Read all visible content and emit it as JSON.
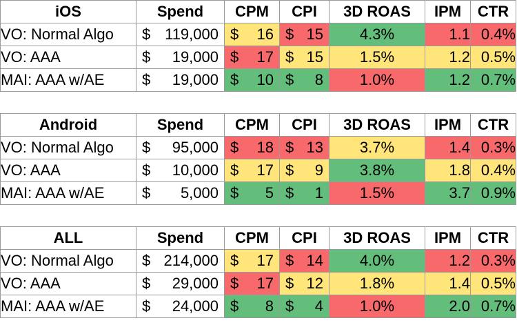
{
  "colors": {
    "green": "#63be7b",
    "yellow": "#ffe57a",
    "red": "#f8696b",
    "border": "#9a9a9a"
  },
  "tables": [
    {
      "header": [
        "iOS",
        "Spend",
        "CPM",
        "CPI",
        "3D ROAS",
        "IPM",
        "CTR"
      ],
      "rows": [
        {
          "label": "VO: Normal Algo",
          "spend": "119,000",
          "cpm": "16",
          "cpi": "15",
          "roas": "4.3%",
          "ipm": "1.1",
          "ctr": "0.4%",
          "colors": {
            "cpm": "yellow",
            "cpi": "red",
            "roas": "green",
            "ipm": "red",
            "ctr": "red"
          }
        },
        {
          "label": "VO: AAA",
          "spend": "19,000",
          "cpm": "17",
          "cpi": "15",
          "roas": "1.5%",
          "ipm": "1.2",
          "ctr": "0.5%",
          "colors": {
            "cpm": "red",
            "cpi": "yellow",
            "roas": "yellow",
            "ipm": "yellow",
            "ctr": "yellow"
          }
        },
        {
          "label": "MAI: AAA w/AE",
          "spend": "19,000",
          "cpm": "10",
          "cpi": "8",
          "roas": "1.0%",
          "ipm": "1.2",
          "ctr": "0.7%",
          "colors": {
            "cpm": "green",
            "cpi": "green",
            "roas": "red",
            "ipm": "green",
            "ctr": "green"
          }
        }
      ]
    },
    {
      "header": [
        "Android",
        "Spend",
        "CPM",
        "CPI",
        "3D ROAS",
        "IPM",
        "CTR"
      ],
      "rows": [
        {
          "label": "VO: Normal Algo",
          "spend": "95,000",
          "cpm": "18",
          "cpi": "13",
          "roas": "3.7%",
          "ipm": "1.4",
          "ctr": "0.3%",
          "colors": {
            "cpm": "red",
            "cpi": "red",
            "roas": "yellow",
            "ipm": "red",
            "ctr": "red"
          }
        },
        {
          "label": "VO: AAA",
          "spend": "10,000",
          "cpm": "17",
          "cpi": "9",
          "roas": "3.8%",
          "ipm": "1.8",
          "ctr": "0.4%",
          "colors": {
            "cpm": "yellow",
            "cpi": "yellow",
            "roas": "green",
            "ipm": "yellow",
            "ctr": "yellow"
          }
        },
        {
          "label": "MAI: AAA w/AE",
          "spend": "5,000",
          "cpm": "5",
          "cpi": "1",
          "roas": "1.5%",
          "ipm": "3.7",
          "ctr": "0.9%",
          "colors": {
            "cpm": "green",
            "cpi": "green",
            "roas": "red",
            "ipm": "green",
            "ctr": "green"
          }
        }
      ]
    },
    {
      "header": [
        "ALL",
        "Spend",
        "CPM",
        "CPI",
        "3D ROAS",
        "IPM",
        "CTR"
      ],
      "rows": [
        {
          "label": "VO: Normal Algo",
          "spend": "214,000",
          "cpm": "17",
          "cpi": "14",
          "roas": "4.0%",
          "ipm": "1.2",
          "ctr": "0.3%",
          "colors": {
            "cpm": "yellow",
            "cpi": "red",
            "roas": "green",
            "ipm": "red",
            "ctr": "red"
          }
        },
        {
          "label": "VO: AAA",
          "spend": "29,000",
          "cpm": "17",
          "cpi": "12",
          "roas": "1.8%",
          "ipm": "1.4",
          "ctr": "0.5%",
          "colors": {
            "cpm": "red",
            "cpi": "yellow",
            "roas": "yellow",
            "ipm": "yellow",
            "ctr": "yellow"
          }
        },
        {
          "label": "MAI: AAA w/AE",
          "spend": "24,000",
          "cpm": "8",
          "cpi": "4",
          "roas": "1.0%",
          "ipm": "2.0",
          "ctr": "0.7%",
          "colors": {
            "cpm": "green",
            "cpi": "green",
            "roas": "red",
            "ipm": "green",
            "ctr": "green"
          }
        }
      ]
    }
  ]
}
